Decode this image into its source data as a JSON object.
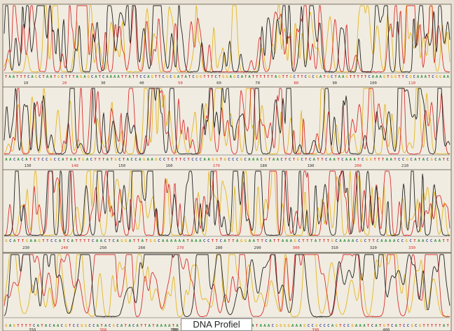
{
  "caption": "DNA Profiel",
  "colors": {
    "A": "#2f8f3f",
    "C": "#3f4f9f",
    "G": "#e0b020",
    "T": "#d03030",
    "trace_black": "#222222",
    "trace_red": "#d83030",
    "trace_yellow": "#e2b622",
    "background": "#e9e2d4"
  },
  "panels": [
    {
      "sequence": "TAATTTCAGCTAATGCTTTAGAGCATCAAAATTATTCCAGTTCGCGATATCGGTTTCTGGAGCATATTTTTTAGTTGCTTCGCGATGCTAAGTTTTTCAAAGTGGTTCGCAAATCGGAA",
      "positions": [
        10,
        20,
        30,
        40,
        50,
        60,
        70,
        80,
        90,
        100,
        110
      ]
    },
    {
      "sequence": "AACACATCTCCGCCATAATGACTTTATGCTACCAGAAGCCTCTTCTCCCAAGGTGCCCGCAAACGTAACTCTGCTCATTCAATCAAATCGGTTTAATCCGCATACGCATC",
      "positions": [
        130,
        140,
        150,
        160,
        170,
        180,
        190,
        200,
        210
      ]
    },
    {
      "sequence": "GCATTGAAGTTCCATCATTTTCAACTCAGGATTATGGCAAAAAATAAACCTTCATTAGGAATTCATTAAAGCTTTATTTGCAAAACGCTTCAAAACCGCTAACCAATT",
      "positions": [
        230,
        240,
        250,
        260,
        270,
        280,
        290,
        300,
        310,
        320,
        330
      ]
    },
    {
      "sequence": "GAGTTTTCATACAACGTCCGGCCATACGCATACATTATAAAATATTTTTCTCAAAAATTATAATAAACGGGGAAAGCCGCCCAGTCCGAAATCATGTCATCCGCGTTTTTAT",
      "positions": [
        350,
        360,
        370,
        380,
        390,
        400
      ]
    }
  ]
}
